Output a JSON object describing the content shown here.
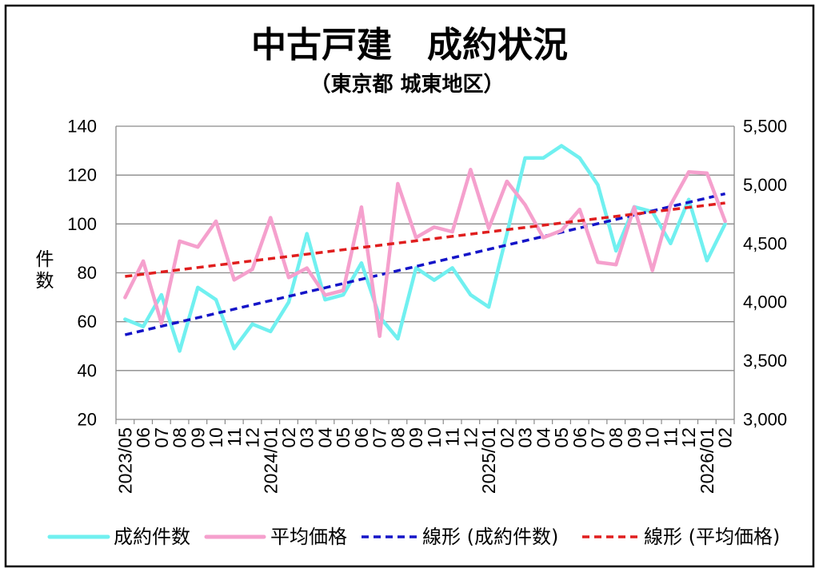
{
  "chart_data": {
    "type": "line",
    "title": "中古戸建　成約状況",
    "subtitle": "（東京都 城東地区）",
    "categories": [
      "2023/05",
      "06",
      "07",
      "08",
      "09",
      "10",
      "11",
      "12",
      "2024/01",
      "02",
      "03",
      "04",
      "05",
      "06",
      "07",
      "08",
      "09",
      "10",
      "11",
      "12",
      "2025/01",
      "02",
      "03",
      "04",
      "05",
      "06",
      "07",
      "08",
      "09",
      "10",
      "11",
      "12",
      "2026/01",
      "02"
    ],
    "y_left": {
      "label": "件数",
      "range": [
        20,
        140
      ],
      "tick_labels": [
        "20",
        "40",
        "60",
        "80",
        "100",
        "120",
        "140"
      ]
    },
    "y_right": {
      "range": [
        3000,
        5500
      ],
      "tick_labels": [
        "3,000",
        "3,500",
        "4,000",
        "4,500",
        "5,000",
        "5,500"
      ]
    },
    "grid": true,
    "legend": "bottom",
    "series": [
      {
        "name": "成約件数",
        "axis": "left",
        "color": "#70f0f0",
        "values": [
          61,
          58,
          71,
          48,
          74,
          69,
          49,
          59,
          56,
          68,
          96,
          69,
          71,
          84,
          62,
          53,
          82,
          77,
          82,
          71,
          66,
          96,
          127,
          127,
          132,
          127,
          116,
          89,
          107,
          105,
          92,
          110,
          85,
          100
        ]
      },
      {
        "name": "平均価格",
        "axis": "right",
        "color": "#f5a0cd",
        "values": [
          4040,
          4350,
          3820,
          4520,
          4470,
          4690,
          4190,
          4280,
          4720,
          4210,
          4290,
          4060,
          4100,
          4810,
          3710,
          5010,
          4550,
          4640,
          4600,
          5130,
          4630,
          5030,
          4830,
          4550,
          4610,
          4790,
          4340,
          4320,
          4810,
          4270,
          4830,
          5110,
          5100,
          4690
        ]
      }
    ],
    "trendlines": [
      {
        "name": "線形 (成約件数)",
        "of": "成約件数",
        "type": "linear",
        "color": "#1414c8",
        "dashed": true
      },
      {
        "name": "線形 (平均価格)",
        "of": "平均価格",
        "type": "linear",
        "color": "#e01e1e",
        "dashed": true
      }
    ]
  }
}
